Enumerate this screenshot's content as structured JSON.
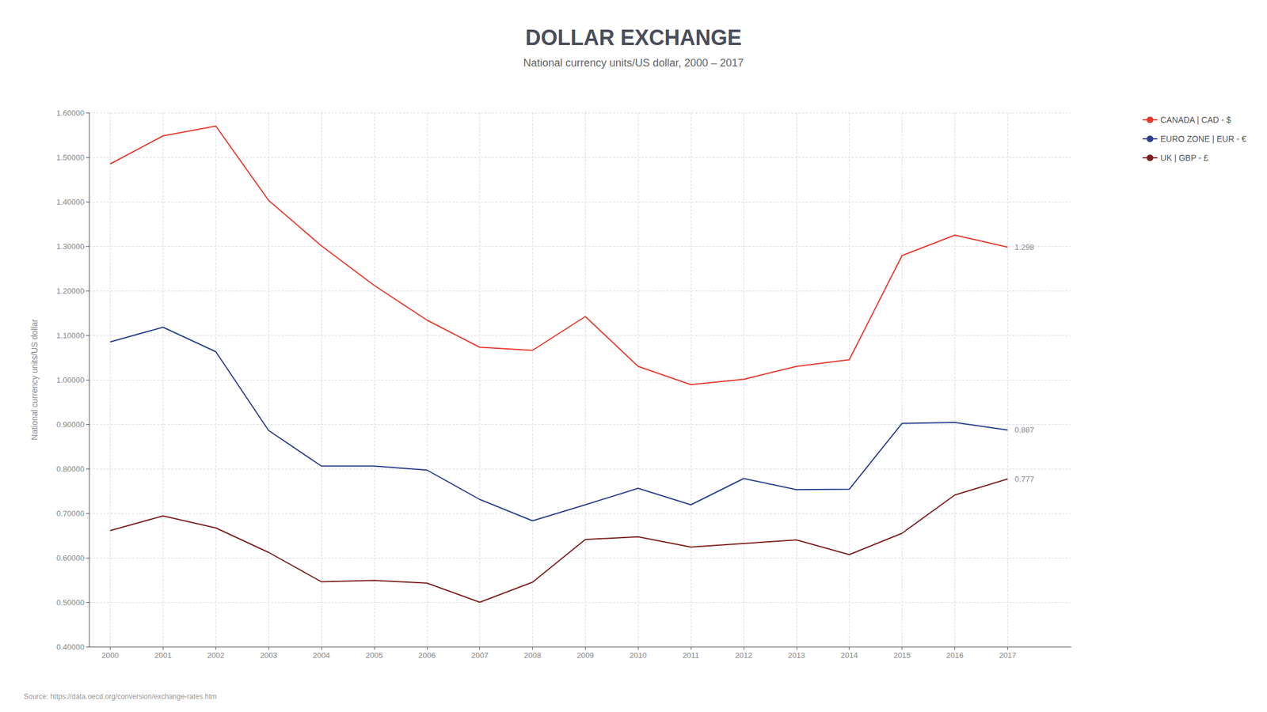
{
  "chart_data": {
    "type": "line",
    "title": "DOLLAR EXCHANGE",
    "subtitle": "National currency units/US dollar, 2000 – 2017",
    "ylabel": "National currency units/US dollar",
    "source": "Source: https://data.oecd.org/conversion/exchange-rates.htm",
    "x": [
      2000,
      2001,
      2002,
      2003,
      2004,
      2005,
      2006,
      2007,
      2008,
      2009,
      2010,
      2011,
      2012,
      2013,
      2014,
      2015,
      2016,
      2017
    ],
    "series": [
      {
        "name": "CANADA | CAD - $",
        "color": "#e8392d",
        "values": [
          1.485,
          1.548,
          1.57,
          1.403,
          1.301,
          1.212,
          1.134,
          1.073,
          1.066,
          1.142,
          1.03,
          0.989,
          1.001,
          1.03,
          1.045,
          1.279,
          1.325,
          1.298
        ]
      },
      {
        "name": "EURO ZONE | EUR - €",
        "color": "#2c3e8c",
        "values": [
          1.085,
          1.118,
          1.063,
          0.886,
          0.806,
          0.806,
          0.797,
          0.731,
          0.683,
          0.719,
          0.756,
          0.719,
          0.778,
          0.753,
          0.754,
          0.902,
          0.904,
          0.887
        ]
      },
      {
        "name": "UK | GBP - £",
        "color": "#7b1f1f",
        "values": [
          0.661,
          0.694,
          0.667,
          0.612,
          0.546,
          0.549,
          0.543,
          0.5,
          0.545,
          0.641,
          0.647,
          0.624,
          0.632,
          0.64,
          0.607,
          0.655,
          0.741,
          0.777
        ]
      }
    ],
    "annotations": [
      {
        "text": "1.298",
        "x": 2017,
        "y": 1.298
      },
      {
        "text": "0.887",
        "x": 2017,
        "y": 0.887
      },
      {
        "text": "0.777",
        "x": 2017,
        "y": 0.777
      }
    ],
    "xlim": [
      1999.6,
      2018.2
    ],
    "xticks": [
      2000,
      2001,
      2002,
      2003,
      2004,
      2005,
      2006,
      2007,
      2008,
      2009,
      2010,
      2011,
      2012,
      2013,
      2014,
      2015,
      2016,
      2017
    ],
    "ylim": [
      0.4,
      1.6
    ],
    "yticks": [
      {
        "value": 0.4,
        "label": "0.40000"
      },
      {
        "value": 0.5,
        "label": "0.50000"
      },
      {
        "value": 0.6,
        "label": "0.60000"
      },
      {
        "value": 0.7,
        "label": "0.70000"
      },
      {
        "value": 0.8,
        "label": "0.80000"
      },
      {
        "value": 0.9,
        "label": "0.90000"
      },
      {
        "value": 1.0,
        "label": "1.00000"
      },
      {
        "value": 1.1,
        "label": "1.10000"
      },
      {
        "value": 1.2,
        "label": "1.20000"
      },
      {
        "value": 1.3,
        "label": "1.30000"
      },
      {
        "value": 1.4,
        "label": "1.40000"
      },
      {
        "value": 1.5,
        "label": "1.50000"
      },
      {
        "value": 1.6,
        "label": "1.60000"
      }
    ],
    "grid": true,
    "legend": "upper right"
  }
}
